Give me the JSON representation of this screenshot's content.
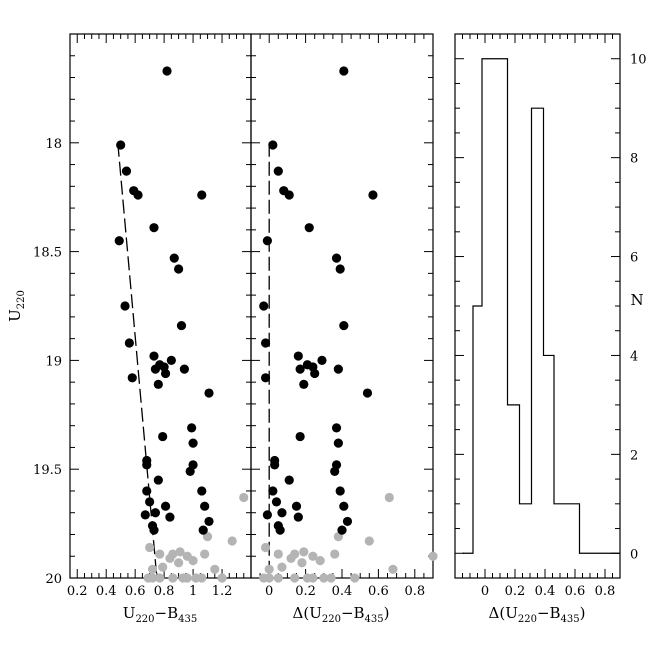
{
  "chart_data": [
    {
      "type": "scatter",
      "panel": "left",
      "xlabel": "U220−B435",
      "xlabel_parts": {
        "main": "U",
        "sub1": "220",
        "mid": "−B",
        "sub2": "435"
      },
      "ylabel": "U220",
      "ylabel_parts": {
        "main": "U",
        "sub": "220"
      },
      "xlim": [
        0.15,
        1.4
      ],
      "ylim": [
        20.0,
        17.5
      ],
      "xticks_labeled": [
        "0.2",
        "0.4",
        "0.6",
        "0.8",
        "1",
        "1.2"
      ],
      "xtick_values": [
        0.2,
        0.4,
        0.6,
        0.8,
        1.0,
        1.2
      ],
      "yticks_labeled": [
        "18",
        "18.5",
        "19",
        "19.5",
        "20"
      ],
      "ytick_values": [
        18.0,
        18.5,
        19.0,
        19.5,
        20.0
      ],
      "fit_line": [
        [
          0.48,
          18.0
        ],
        [
          0.75,
          20.0
        ]
      ],
      "series": [
        {
          "color": "#000000",
          "points": [
            [
              0.82,
              17.67
            ],
            [
              0.5,
              18.01
            ],
            [
              0.54,
              18.13
            ],
            [
              0.59,
              18.22
            ],
            [
              0.62,
              18.24
            ],
            [
              1.06,
              18.24
            ],
            [
              0.73,
              18.39
            ],
            [
              0.49,
              18.45
            ],
            [
              0.87,
              18.53
            ],
            [
              0.9,
              18.58
            ],
            [
              0.53,
              18.75
            ],
            [
              0.92,
              18.84
            ],
            [
              0.56,
              18.92
            ],
            [
              0.73,
              18.98
            ],
            [
              0.85,
              19.0
            ],
            [
              0.77,
              19.02
            ],
            [
              0.8,
              19.03
            ],
            [
              0.74,
              19.04
            ],
            [
              0.81,
              19.06
            ],
            [
              0.94,
              19.04
            ],
            [
              0.58,
              19.08
            ],
            [
              0.76,
              19.11
            ],
            [
              1.11,
              19.15
            ],
            [
              0.99,
              19.31
            ],
            [
              0.79,
              19.35
            ],
            [
              1.0,
              19.38
            ],
            [
              0.98,
              19.51
            ],
            [
              0.68,
              19.46
            ],
            [
              0.68,
              19.48
            ],
            [
              1.0,
              19.48
            ],
            [
              0.76,
              19.55
            ],
            [
              0.68,
              19.6
            ],
            [
              0.81,
              19.67
            ],
            [
              0.7,
              19.65
            ],
            [
              1.06,
              19.6
            ],
            [
              1.08,
              19.67
            ],
            [
              0.67,
              19.71
            ],
            [
              0.74,
              19.7
            ],
            [
              0.84,
              19.72
            ],
            [
              0.72,
              19.76
            ],
            [
              0.73,
              19.78
            ],
            [
              1.07,
              19.78
            ],
            [
              1.11,
              19.74
            ]
          ]
        },
        {
          "color": "#b4b4b4",
          "points": [
            [
              1.35,
              19.63
            ],
            [
              1.1,
              19.81
            ],
            [
              1.27,
              19.83
            ],
            [
              0.7,
              19.86
            ],
            [
              0.77,
              19.89
            ],
            [
              0.86,
              19.89
            ],
            [
              0.91,
              19.88
            ],
            [
              0.96,
              19.9
            ],
            [
              1.08,
              19.89
            ],
            [
              0.84,
              19.91
            ],
            [
              1.0,
              19.92
            ],
            [
              0.9,
              19.93
            ],
            [
              0.79,
              19.95
            ],
            [
              0.72,
              19.96
            ],
            [
              1.15,
              19.96
            ],
            [
              0.69,
              20.0
            ],
            [
              0.72,
              20.0
            ],
            [
              0.77,
              20.0
            ],
            [
              0.86,
              20.0
            ],
            [
              0.93,
              20.0
            ],
            [
              0.96,
              20.0
            ],
            [
              1.02,
              20.0
            ],
            [
              1.06,
              20.0
            ],
            [
              1.2,
              20.0
            ]
          ]
        }
      ]
    },
    {
      "type": "scatter",
      "panel": "middle",
      "xlabel": "Δ(U220−B435)",
      "xlabel_parts": {
        "pre": "Δ(U",
        "sub1": "220",
        "mid": "−B",
        "sub2": "435",
        "post": ")"
      },
      "xlim": [
        -0.1,
        0.9
      ],
      "ylim": [
        20.0,
        17.5
      ],
      "xticks_labeled": [
        "0",
        "0.2",
        "0.4",
        "0.6",
        "0.8"
      ],
      "xtick_values": [
        0.0,
        0.2,
        0.4,
        0.6,
        0.8
      ],
      "fit_line": [
        [
          0.0,
          18.0
        ],
        [
          0.0,
          20.0
        ]
      ],
      "series": [
        {
          "color": "#000000",
          "points": [
            [
              0.41,
              17.67
            ],
            [
              0.02,
              18.01
            ],
            [
              0.05,
              18.13
            ],
            [
              0.08,
              18.22
            ],
            [
              0.11,
              18.24
            ],
            [
              0.57,
              18.24
            ],
            [
              0.22,
              18.39
            ],
            [
              -0.01,
              18.45
            ],
            [
              0.37,
              18.53
            ],
            [
              0.39,
              18.58
            ],
            [
              -0.03,
              18.75
            ],
            [
              0.41,
              18.84
            ],
            [
              -0.02,
              18.92
            ],
            [
              0.16,
              18.98
            ],
            [
              0.29,
              19.0
            ],
            [
              0.21,
              19.02
            ],
            [
              0.24,
              19.03
            ],
            [
              0.17,
              19.04
            ],
            [
              0.25,
              19.06
            ],
            [
              0.38,
              19.04
            ],
            [
              -0.02,
              19.08
            ],
            [
              0.19,
              19.11
            ],
            [
              0.54,
              19.15
            ],
            [
              0.37,
              19.31
            ],
            [
              0.17,
              19.35
            ],
            [
              0.38,
              19.38
            ],
            [
              0.36,
              19.51
            ],
            [
              0.03,
              19.46
            ],
            [
              0.03,
              19.48
            ],
            [
              0.37,
              19.48
            ],
            [
              0.11,
              19.55
            ],
            [
              0.02,
              19.6
            ],
            [
              0.15,
              19.67
            ],
            [
              0.04,
              19.65
            ],
            [
              0.39,
              19.6
            ],
            [
              0.41,
              19.67
            ],
            [
              -0.01,
              19.71
            ],
            [
              0.07,
              19.7
            ],
            [
              0.16,
              19.72
            ],
            [
              0.05,
              19.76
            ],
            [
              0.06,
              19.78
            ],
            [
              0.4,
              19.78
            ],
            [
              0.43,
              19.74
            ]
          ]
        },
        {
          "color": "#b4b4b4",
          "points": [
            [
              0.66,
              19.63
            ],
            [
              0.38,
              19.81
            ],
            [
              0.55,
              19.83
            ],
            [
              -0.02,
              19.86
            ],
            [
              0.05,
              19.89
            ],
            [
              0.14,
              19.89
            ],
            [
              0.19,
              19.88
            ],
            [
              0.24,
              19.9
            ],
            [
              0.36,
              19.89
            ],
            [
              0.12,
              19.91
            ],
            [
              0.28,
              19.92
            ],
            [
              0.18,
              19.93
            ],
            [
              0.07,
              19.95
            ],
            [
              0.0,
              19.96
            ],
            [
              0.68,
              19.96
            ],
            [
              0.9,
              19.9
            ],
            [
              -0.03,
              20.0
            ],
            [
              0.0,
              20.0
            ],
            [
              0.05,
              20.0
            ],
            [
              0.14,
              20.0
            ],
            [
              0.21,
              20.0
            ],
            [
              0.24,
              20.0
            ],
            [
              0.3,
              20.0
            ],
            [
              0.34,
              20.0
            ],
            [
              0.47,
              20.0
            ]
          ]
        }
      ]
    },
    {
      "type": "histogram",
      "panel": "right",
      "xlabel": "Δ(U220−B435)",
      "xlabel_parts": {
        "pre": "Δ(U",
        "sub1": "220",
        "mid": "−B",
        "sub2": "435",
        "post": ")"
      },
      "ylabel": "N",
      "xlim": [
        -0.2,
        0.9
      ],
      "ylim": [
        -0.5,
        10.5
      ],
      "xticks_labeled": [
        "0",
        "0.2",
        "0.4",
        "0.6",
        "0.8"
      ],
      "xtick_values": [
        0.0,
        0.2,
        0.4,
        0.6,
        0.8
      ],
      "yticks_labeled": [
        "0",
        "2",
        "4",
        "6",
        "8",
        "10"
      ],
      "ytick_values": [
        0,
        2,
        4,
        6,
        8,
        10
      ],
      "bin_edges": [
        -0.15,
        -0.08,
        -0.02,
        0.15,
        0.23,
        0.31,
        0.39,
        0.46,
        0.63,
        0.9
      ],
      "counts": [
        0,
        5,
        10,
        3,
        1,
        9,
        4,
        1,
        0
      ]
    }
  ]
}
